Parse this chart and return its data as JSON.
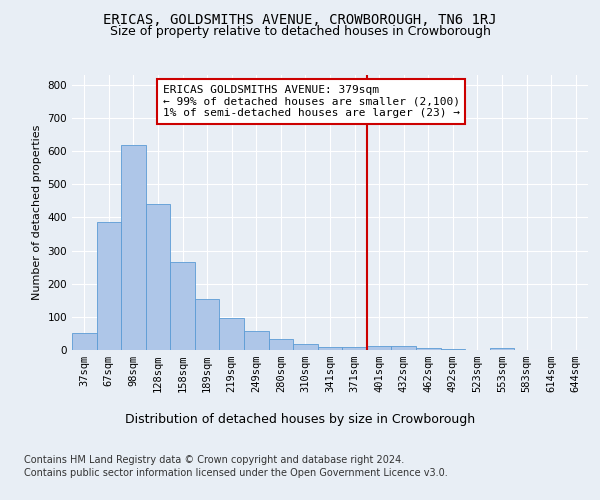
{
  "title": "ERICAS, GOLDSMITHS AVENUE, CROWBOROUGH, TN6 1RJ",
  "subtitle": "Size of property relative to detached houses in Crowborough",
  "xlabel": "Distribution of detached houses by size in Crowborough",
  "ylabel": "Number of detached properties",
  "footer_line1": "Contains HM Land Registry data © Crown copyright and database right 2024.",
  "footer_line2": "Contains public sector information licensed under the Open Government Licence v3.0.",
  "bar_labels": [
    "37sqm",
    "67sqm",
    "98sqm",
    "128sqm",
    "158sqm",
    "189sqm",
    "219sqm",
    "249sqm",
    "280sqm",
    "310sqm",
    "341sqm",
    "371sqm",
    "401sqm",
    "432sqm",
    "462sqm",
    "492sqm",
    "523sqm",
    "553sqm",
    "583sqm",
    "614sqm",
    "644sqm"
  ],
  "bar_values": [
    50,
    385,
    620,
    440,
    267,
    155,
    97,
    57,
    32,
    18,
    10,
    10,
    12,
    12,
    7,
    3,
    0,
    7,
    0,
    0,
    0
  ],
  "bar_color": "#aec6e8",
  "bar_edgecolor": "#5b9bd5",
  "vline_x": 11.5,
  "vline_color": "#cc0000",
  "annotation_text": "ERICAS GOLDSMITHS AVENUE: 379sqm\n← 99% of detached houses are smaller (2,100)\n1% of semi-detached houses are larger (23) →",
  "annotation_box_color": "#ffffff",
  "annotation_box_edgecolor": "#cc0000",
  "ylim": [
    0,
    830
  ],
  "yticks": [
    0,
    100,
    200,
    300,
    400,
    500,
    600,
    700,
    800
  ],
  "bg_color": "#e8eef5",
  "plot_bg_color": "#e8eef5",
  "title_fontsize": 10,
  "subtitle_fontsize": 9,
  "xlabel_fontsize": 9,
  "ylabel_fontsize": 8,
  "tick_fontsize": 7.5,
  "annotation_fontsize": 8,
  "footer_fontsize": 7
}
